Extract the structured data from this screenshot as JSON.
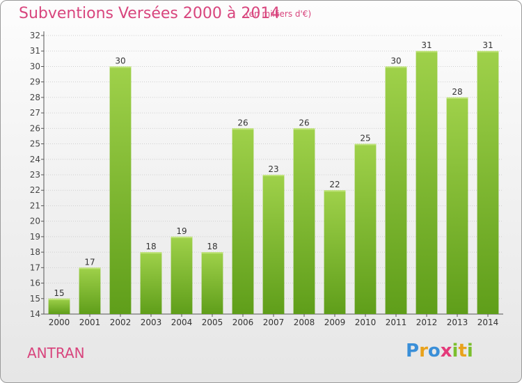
{
  "header": {
    "title": "Subventions Versées 2000 à 2014",
    "unit": "(en milliers d'€)"
  },
  "footer": {
    "commune": "ANTRAN",
    "logo_letters": [
      {
        "ch": "P",
        "color": "#3a8fd8"
      },
      {
        "ch": "r",
        "color": "#e9a21b"
      },
      {
        "ch": "o",
        "color": "#3a8fd8"
      },
      {
        "ch": "x",
        "color": "#e43a7a"
      },
      {
        "ch": "i",
        "color": "#7bbf2e"
      },
      {
        "ch": "t",
        "color": "#e9a21b"
      },
      {
        "ch": "i",
        "color": "#7bbf2e"
      }
    ]
  },
  "colors": {
    "bar_top": "#9fd14a",
    "bar_bottom": "#5f9e1a",
    "title": "#d8457d",
    "grid": "#cfcfcf"
  },
  "chart_data": {
    "type": "bar",
    "title": "Subventions Versées 2000 à 2014",
    "categories": [
      "2000",
      "2001",
      "2002",
      "2003",
      "2004",
      "2005",
      "2006",
      "2007",
      "2008",
      "2009",
      "2010",
      "2011",
      "2012",
      "2013",
      "2014"
    ],
    "values": [
      15,
      17,
      30,
      18,
      19,
      18,
      26,
      23,
      26,
      22,
      25,
      30,
      31,
      28,
      31
    ],
    "ylim": [
      14,
      32
    ],
    "yticks": [
      14,
      15,
      16,
      17,
      18,
      19,
      20,
      21,
      22,
      23,
      24,
      25,
      26,
      27,
      28,
      29,
      30,
      31,
      32
    ],
    "grid": true,
    "xlabel": "",
    "ylabel": ""
  }
}
